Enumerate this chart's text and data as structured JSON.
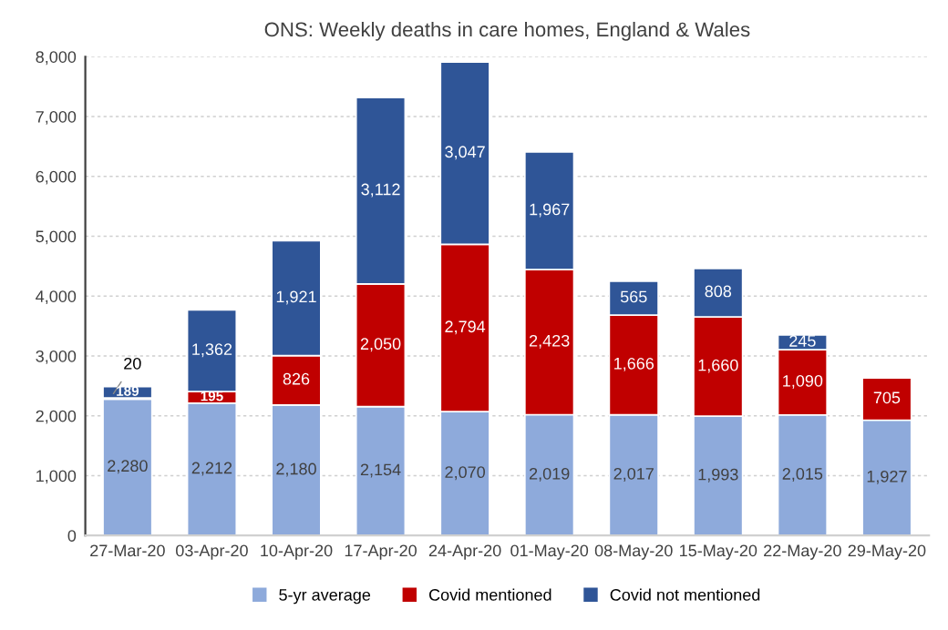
{
  "chart_data": {
    "type": "bar",
    "title": "ONS: Weekly deaths in care homes, England & Wales",
    "categories": [
      "27-Mar-20",
      "03-Apr-20",
      "10-Apr-20",
      "17-Apr-20",
      "24-Apr-20",
      "01-May-20",
      "08-May-20",
      "15-May-20",
      "22-May-20",
      "29-May-20"
    ],
    "stacked": true,
    "series": [
      {
        "name": "5-yr average",
        "color": "#8eaadb",
        "values": [
          2280,
          2212,
          2180,
          2154,
          2070,
          2019,
          2017,
          1993,
          2015,
          1927
        ],
        "value_labels": [
          "2,280",
          "2,212",
          "2,180",
          "2,154",
          "2,070",
          "2,019",
          "2,017",
          "1,993",
          "2,015",
          "1,927"
        ]
      },
      {
        "name": "Covid mentioned",
        "color": "#c00000",
        "values": [
          20,
          195,
          826,
          2050,
          2794,
          2423,
          1666,
          1660,
          1090,
          705
        ],
        "value_labels": [
          "20",
          "195",
          "826",
          "2,050",
          "2,794",
          "2,423",
          "1,666",
          "1,660",
          "1,090",
          "705"
        ]
      },
      {
        "name": "Covid not mentioned",
        "color": "#2f5597",
        "values": [
          189,
          1362,
          1921,
          3112,
          3047,
          1967,
          565,
          808,
          245,
          null
        ],
        "value_labels": [
          "189",
          "1,362",
          "1,921",
          "3,112",
          "3,047",
          "1,967",
          "565",
          "808",
          "245",
          null
        ]
      }
    ],
    "ylim": [
      0,
      8000
    ],
    "yticks": [
      {
        "value": 0,
        "label": "0"
      },
      {
        "value": 1000,
        "label": "1,000"
      },
      {
        "value": 2000,
        "label": "2,000"
      },
      {
        "value": 3000,
        "label": "3,000"
      },
      {
        "value": 4000,
        "label": "4,000"
      },
      {
        "value": 5000,
        "label": "5,000"
      },
      {
        "value": 6000,
        "label": "6,000"
      },
      {
        "value": 7000,
        "label": "7,000"
      },
      {
        "value": 8000,
        "label": "8,000"
      }
    ],
    "grid": "y",
    "legend": "bottom"
  }
}
